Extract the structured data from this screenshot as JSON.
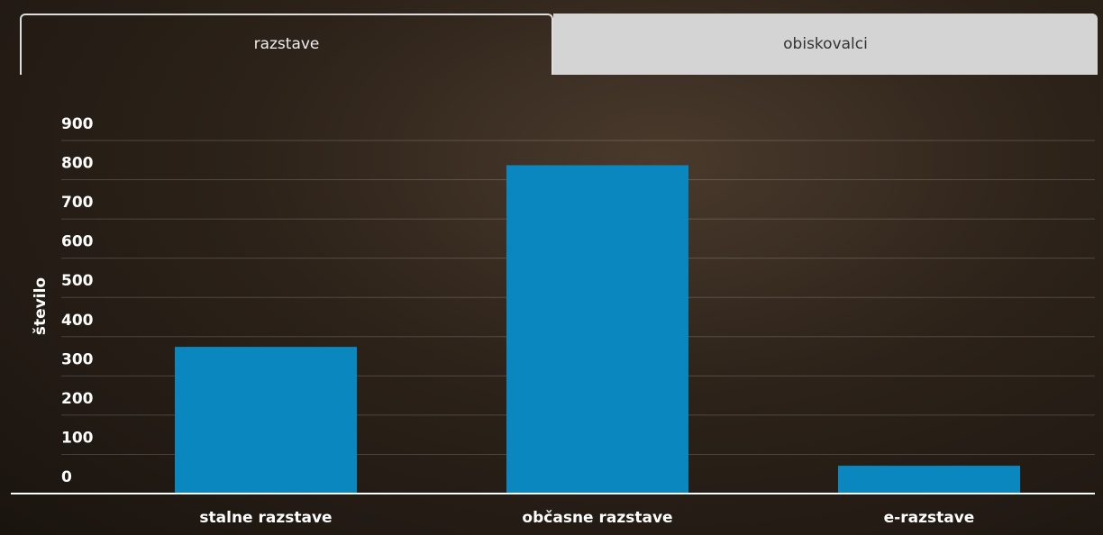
{
  "tabs": [
    "razstave",
    "obiskovalci"
  ],
  "chart_data": {
    "type": "bar",
    "y_label": "število",
    "categories": [
      "stalne razstave",
      "občasne razstave",
      "e-razstave"
    ],
    "values": [
      374,
      837,
      71
    ],
    "color": "#0a87be",
    "ylim": [
      0,
      900
    ],
    "yticks": [
      0,
      100,
      200,
      300,
      400,
      500,
      600,
      700,
      800,
      900
    ],
    "grid": true
  }
}
